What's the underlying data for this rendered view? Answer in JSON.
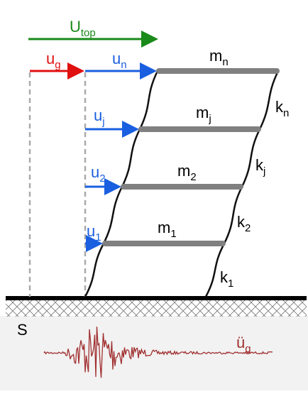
{
  "labels": {
    "u_top": {
      "base": "U",
      "sub": "top"
    },
    "u_g": {
      "base": "u",
      "sub": "g"
    },
    "u_n": {
      "base": "u",
      "sub": "n"
    },
    "u_j": {
      "base": "u",
      "sub": "j"
    },
    "u_2": {
      "base": "u",
      "sub": "2"
    },
    "u_1": {
      "base": "u",
      "sub": "1"
    },
    "m_n": {
      "base": "m",
      "sub": "n"
    },
    "m_j": {
      "base": "m",
      "sub": "j"
    },
    "m_2": {
      "base": "m",
      "sub": "2"
    },
    "m_1": {
      "base": "m",
      "sub": "1"
    },
    "k_n": {
      "base": "k",
      "sub": "n"
    },
    "k_j": {
      "base": "k",
      "sub": "j"
    },
    "k_2": {
      "base": "k",
      "sub": "2"
    },
    "k_1": {
      "base": "k",
      "sub": "1"
    },
    "accel": {
      "base": "ü",
      "sub": "g"
    }
  },
  "soil": "S"
}
